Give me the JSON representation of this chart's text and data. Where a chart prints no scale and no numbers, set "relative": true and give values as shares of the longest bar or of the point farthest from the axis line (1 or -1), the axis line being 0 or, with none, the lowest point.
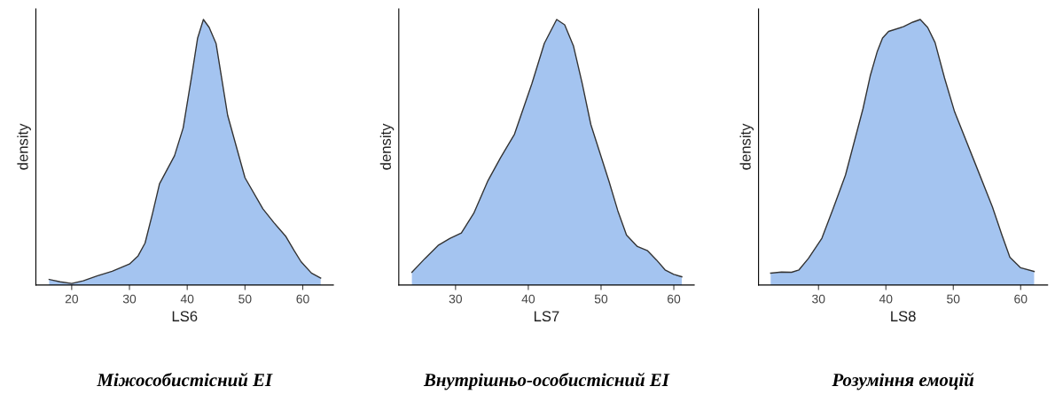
{
  "chart_data": [
    {
      "type": "area",
      "relative": true,
      "xlabel": "LS6",
      "ylabel": "density",
      "title": "Міжособистісний EI",
      "xlim": [
        13.8,
        65.3
      ],
      "xticks": [
        20,
        30,
        40,
        50,
        60
      ],
      "grid": false,
      "series": [
        {
          "color": "#a4c4f0",
          "x": [
            16.1,
            18,
            20,
            22,
            24.5,
            27,
            30,
            31.5,
            32.7,
            34,
            35.2,
            37.8,
            39.3,
            40.8,
            41.8,
            42.8,
            43.8,
            45,
            47,
            50,
            53.1,
            55,
            57.1,
            58.5,
            59.7,
            61.5,
            63.1
          ],
          "values": [
            0.021,
            0.012,
            0.006,
            0.016,
            0.035,
            0.052,
            0.079,
            0.11,
            0.158,
            0.27,
            0.381,
            0.487,
            0.592,
            0.791,
            0.93,
            1.0,
            0.97,
            0.909,
            0.639,
            0.404,
            0.287,
            0.235,
            0.182,
            0.13,
            0.088,
            0.045,
            0.026
          ]
        }
      ]
    },
    {
      "type": "area",
      "relative": true,
      "xlabel": "LS7",
      "ylabel": "density",
      "title": "Внутрішньо-особистісний EI",
      "xlim": [
        22.2,
        62.8
      ],
      "xticks": [
        30,
        40,
        50,
        60
      ],
      "grid": false,
      "series": [
        {
          "color": "#a4c4f0",
          "x": [
            24,
            25.8,
            27.6,
            29.2,
            30.8,
            32.5,
            34.4,
            36.2,
            38.1,
            40.5,
            42.2,
            43.9,
            45,
            46.2,
            47.4,
            48.6,
            51.1,
            52.3,
            53.5,
            55,
            56.4,
            57.6,
            58.8,
            60,
            61.1
          ],
          "values": [
            0.048,
            0.1,
            0.149,
            0.175,
            0.196,
            0.27,
            0.39,
            0.48,
            0.568,
            0.759,
            0.91,
            1.0,
            0.98,
            0.901,
            0.76,
            0.604,
            0.39,
            0.28,
            0.188,
            0.145,
            0.129,
            0.095,
            0.057,
            0.04,
            0.031
          ]
        }
      ]
    },
    {
      "type": "area",
      "relative": true,
      "xlabel": "LS8",
      "ylabel": "density",
      "title": "Розуміння емоцій",
      "xlim": [
        21.1,
        64
      ],
      "xticks": [
        30,
        40,
        50,
        60
      ],
      "grid": false,
      "series": [
        {
          "color": "#a4c4f0",
          "x": [
            22.9,
            24.5,
            26,
            27.1,
            28.5,
            30.5,
            32.2,
            34,
            36.6,
            37.7,
            38.7,
            39.5,
            40.4,
            42.6,
            44,
            45.1,
            46.2,
            47.3,
            48.7,
            50.2,
            53.2,
            55.8,
            57.2,
            58.4,
            60,
            62
          ],
          "values": [
            0.045,
            0.049,
            0.048,
            0.057,
            0.1,
            0.176,
            0.29,
            0.414,
            0.664,
            0.79,
            0.878,
            0.93,
            0.955,
            0.973,
            0.99,
            1.0,
            0.97,
            0.913,
            0.78,
            0.652,
            0.461,
            0.295,
            0.19,
            0.105,
            0.065,
            0.051
          ]
        }
      ]
    }
  ]
}
